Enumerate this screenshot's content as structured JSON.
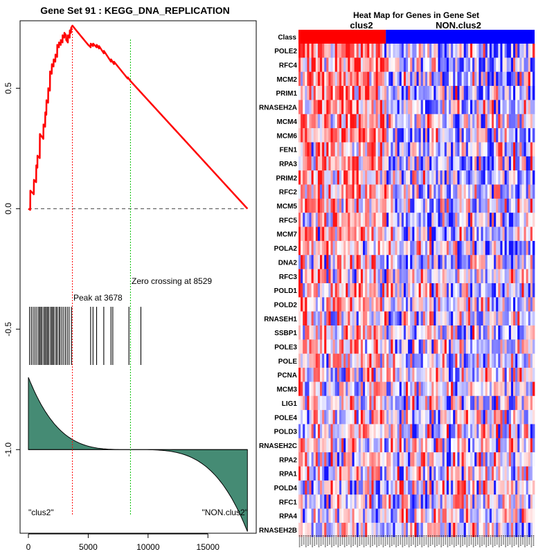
{
  "chart_data": [
    {
      "type": "line",
      "title": "Gene Set  91 : KEGG_DNA_REPLICATION",
      "x_ticks": [
        0,
        5000,
        10000,
        15000
      ],
      "y_ticks": [
        0.5,
        0.0,
        -0.5,
        -1.0
      ],
      "y_tick_labels": [
        "0.5",
        "0.0",
        "-0.5",
        "-1.0"
      ],
      "xlim": [
        0,
        18400
      ],
      "ylim": [
        -1.35,
        0.78
      ],
      "running_es": {
        "x": [
          0,
          150,
          160,
          450,
          460,
          650,
          660,
          750,
          760,
          950,
          960,
          1250,
          1260,
          1400,
          1410,
          1500,
          1510,
          1650,
          1660,
          1800,
          1810,
          1950,
          1960,
          2100,
          2110,
          2250,
          2260,
          2400,
          2410,
          2550,
          2560,
          2700,
          2710,
          2850,
          2860,
          3000,
          3010,
          3150,
          3160,
          3300,
          3310,
          3450,
          3460,
          3560,
          3570,
          3678,
          4000,
          4500,
          5000,
          5200,
          5210,
          5400,
          5410,
          5700,
          5710,
          5900,
          5910,
          6300,
          6310,
          6900,
          6910,
          7150,
          7160,
          8300,
          8310,
          8529,
          18300
        ],
        "y": [
          0.0,
          -0.005,
          0.075,
          0.06,
          0.12,
          0.11,
          0.18,
          0.17,
          0.22,
          0.21,
          0.31,
          0.29,
          0.35,
          0.34,
          0.4,
          0.39,
          0.45,
          0.44,
          0.5,
          0.49,
          0.57,
          0.56,
          0.6,
          0.59,
          0.62,
          0.61,
          0.64,
          0.63,
          0.68,
          0.67,
          0.69,
          0.68,
          0.7,
          0.69,
          0.72,
          0.71,
          0.73,
          0.72,
          0.7,
          0.69,
          0.72,
          0.71,
          0.74,
          0.73,
          0.75,
          0.76,
          0.74,
          0.71,
          0.68,
          0.67,
          0.685,
          0.675,
          0.685,
          0.67,
          0.68,
          0.665,
          0.675,
          0.645,
          0.655,
          0.61,
          0.62,
          0.6,
          0.61,
          0.54,
          0.545,
          0.53,
          0.0
        ]
      },
      "hit_positions": [
        100,
        250,
        400,
        550,
        700,
        850,
        950,
        1050,
        1150,
        1300,
        1400,
        1500,
        1600,
        1700,
        1850,
        1950,
        2050,
        2150,
        2300,
        2400,
        2550,
        2650,
        2800,
        2950,
        3100,
        3250,
        3400,
        3600,
        5200,
        5400,
        5700,
        6300,
        6900,
        7050,
        8400,
        9400
      ],
      "ranked_metric": {
        "x_max": 18300,
        "top": -0.7,
        "bottom": -1.34,
        "baseline": -1.0,
        "zero_crossing": 8529
      },
      "peak_x": 3678,
      "zero_x": 8529,
      "annotations": {
        "peak": "Peak at 3678",
        "zero": "Zero crossing at 8529",
        "left_class": "\"clus2\"",
        "right_class": "\"NON.clus2\""
      }
    },
    {
      "type": "heatmap",
      "title": "Heat Map for Genes in Gene Set",
      "row_label_class": "Class",
      "classes": [
        "clus2",
        "NON.clus2"
      ],
      "class_colors": [
        "#ff0000",
        "#0000ff"
      ],
      "class_split_fraction": 0.37,
      "genes": [
        "POLE2",
        "RFC4",
        "MCM2",
        "PRIM1",
        "RNASEH2A",
        "MCM4",
        "MCM6",
        "FEN1",
        "RPA3",
        "PRIM2",
        "RFC2",
        "MCM5",
        "RFC5",
        "MCM7",
        "POLA2",
        "DNA2",
        "RFC3",
        "POLD1",
        "POLD2",
        "RNASEH1",
        "SSBP1",
        "POLE3",
        "POLE",
        "PCNA",
        "MCM3",
        "LIG1",
        "POLE4",
        "POLD3",
        "RNASEH2C",
        "RPA2",
        "RPA1",
        "POLD4",
        "RFC1",
        "RPA4",
        "RNASEH2B"
      ],
      "row_bias": [
        0.5,
        0.45,
        0.42,
        0.4,
        0.38,
        0.36,
        0.35,
        0.34,
        0.3,
        0.3,
        0.28,
        0.27,
        0.26,
        0.25,
        0.24,
        0.22,
        0.2,
        0.18,
        0.18,
        0.16,
        0.15,
        0.14,
        0.12,
        0.12,
        0.1,
        0.1,
        0.08,
        0.08,
        0.06,
        0.05,
        0.05,
        0.04,
        0.03,
        0.02,
        0.02
      ],
      "n_samples": 110
    }
  ]
}
